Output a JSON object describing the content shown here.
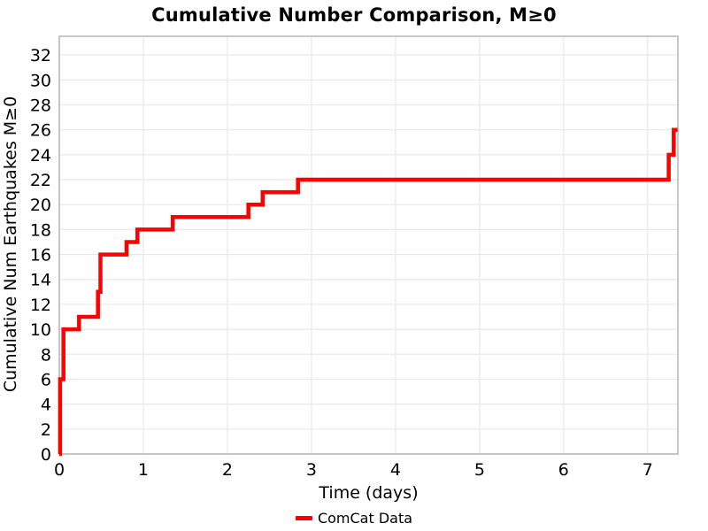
{
  "title": "Cumulative Number Comparison, M≥0",
  "legend": {
    "items": [
      {
        "label": "ComCat Data",
        "color": "#ff0000"
      }
    ]
  },
  "colors": {
    "line": "#ff0000",
    "grid": "#e8e8e8",
    "frame": "#aaaaaa",
    "text": "#000000",
    "background": "#ffffff"
  },
  "chart_data": {
    "type": "line",
    "line_style": "step-post",
    "title": "Cumulative Number Comparison, M≥0",
    "xlabel": "Time (days)",
    "ylabel": "Cumulative Num Earthquakes M≥0",
    "xlim": [
      0,
      7.36
    ],
    "ylim": [
      0,
      33.5
    ],
    "xticks": [
      0,
      1,
      2,
      3,
      4,
      5,
      6,
      7
    ],
    "yticks": [
      0,
      2,
      4,
      6,
      8,
      10,
      12,
      14,
      16,
      18,
      20,
      22,
      24,
      26,
      28,
      30,
      32
    ],
    "grid": true,
    "legend_position": "bottom-center",
    "series": [
      {
        "name": "ComCat Data",
        "color": "#ff0000",
        "line_width": 4.5,
        "points": [
          [
            0.0,
            0
          ],
          [
            0.01,
            6
          ],
          [
            0.05,
            10
          ],
          [
            0.235,
            11
          ],
          [
            0.46,
            13
          ],
          [
            0.49,
            16
          ],
          [
            0.8,
            17
          ],
          [
            0.93,
            18
          ],
          [
            1.35,
            19
          ],
          [
            2.25,
            20
          ],
          [
            2.42,
            21
          ],
          [
            2.84,
            22
          ],
          [
            7.25,
            24
          ],
          [
            7.31,
            26
          ],
          [
            7.355,
            26
          ]
        ]
      }
    ]
  }
}
